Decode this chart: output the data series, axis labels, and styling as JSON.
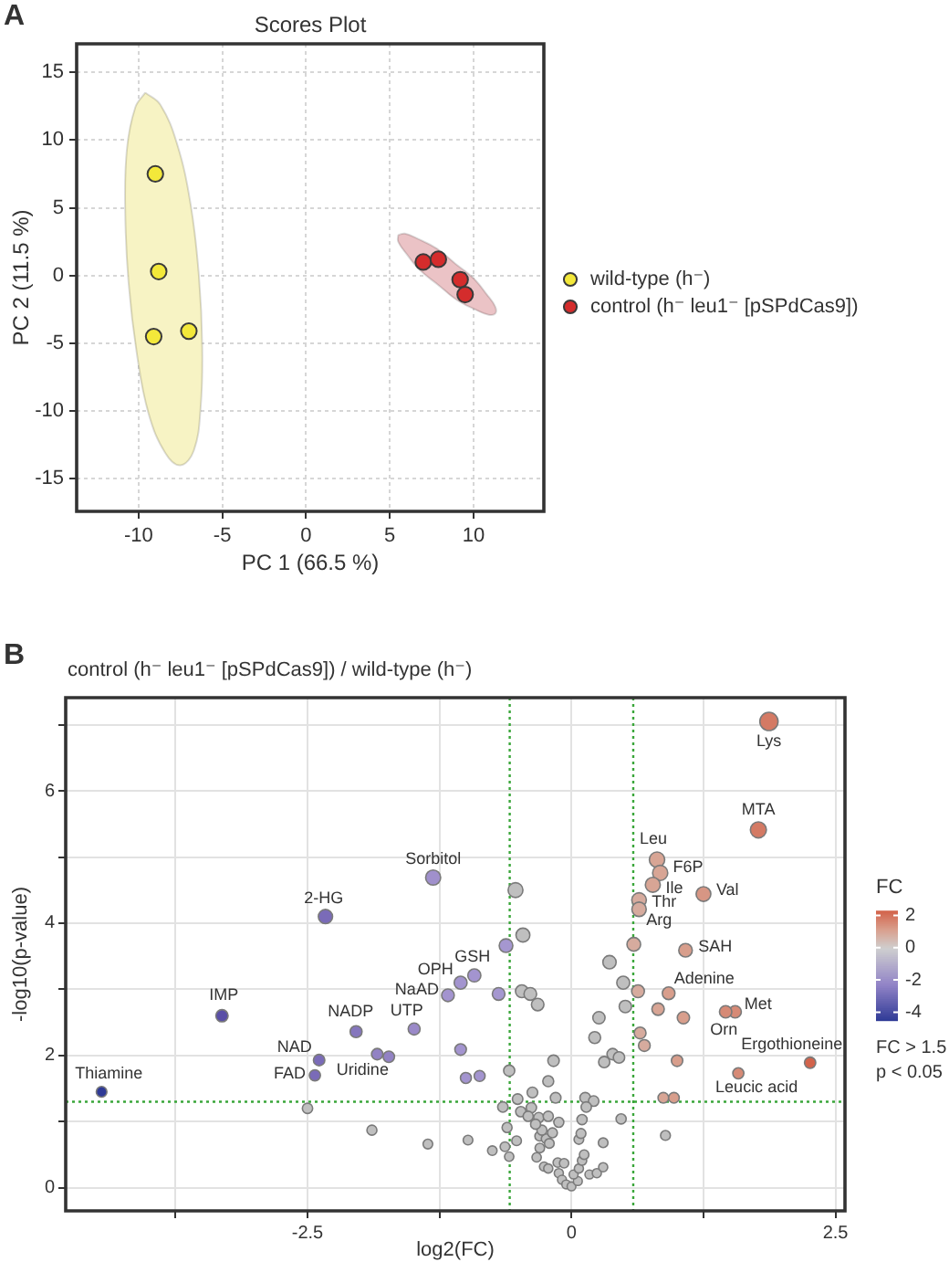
{
  "chart_data": [
    {
      "type": "scatter",
      "title": "Scores Plot",
      "xlabel": "PC 1 (66.5 %)",
      "ylabel": "PC 2 (11.5 %)",
      "annotations": [
        "A"
      ],
      "xlim": [
        -13.7,
        14.2
      ],
      "ylim": [
        -17.4,
        17.1
      ],
      "xticks": [
        -10,
        -5,
        0,
        5,
        10
      ],
      "yticks": [
        -15,
        -10,
        -5,
        0,
        5,
        10,
        15
      ],
      "grid": true,
      "legend": "right",
      "marker": "circle",
      "series": [
        {
          "type": "area",
          "marker": "none",
          "color": "#f7f3c4",
          "x": [
            -9.6,
            -8.7,
            -7.7,
            -6.9,
            -6.4,
            -6.2,
            -6.3,
            -6.7,
            -7.5,
            -8.4,
            -9.4,
            -10.1,
            -10.6,
            -10.8,
            -10.7,
            -10.2,
            -9.6
          ],
          "values": [
            13.5,
            12.6,
            9.7,
            5.3,
            0.0,
            -5.3,
            -9.8,
            -12.9,
            -14.0,
            -13.1,
            -10.2,
            -5.8,
            -0.5,
            4.8,
            9.3,
            12.4,
            13.5
          ]
        },
        {
          "type": "area",
          "marker": "none",
          "color": "#ebc3c6",
          "x": [
            5.5,
            5.9,
            6.7,
            7.8,
            8.9,
            10.0,
            10.8,
            11.3,
            11.3,
            10.9,
            10.1,
            9.0,
            7.9,
            6.8,
            6.0,
            5.5,
            5.5
          ],
          "values": [
            3.0,
            3.1,
            2.7,
            2.0,
            0.9,
            -0.2,
            -1.4,
            -2.3,
            -2.8,
            -2.9,
            -2.5,
            -1.8,
            -0.7,
            0.4,
            1.6,
            2.5,
            3.0
          ]
        },
        {
          "name": "wild-type (h⁻)",
          "color": "#f3e83a",
          "x": [
            -9.0,
            -8.8,
            -9.1,
            -7.0
          ],
          "values": [
            7.5,
            0.3,
            -4.5,
            -4.1
          ]
        },
        {
          "name": "control (h⁻ leu1⁻ [pSPdCas9])",
          "color": "#d42c2c",
          "x": [
            7.0,
            7.9,
            9.2,
            9.5
          ],
          "values": [
            1.0,
            1.2,
            -0.3,
            -1.4
          ]
        }
      ]
    },
    {
      "type": "bubble",
      "title": "control (h⁻ leu1⁻ [pSPdCas9]) / wild-type (h⁻)",
      "xlabel": "log2(FC)",
      "ylabel": "-log10(p-value)",
      "clabel": "FC",
      "clim": [
        -4.5,
        2.3
      ],
      "cticks": [
        2,
        0,
        -2,
        -4
      ],
      "xlim": [
        -4.79,
        2.59
      ],
      "ylim": [
        -0.35,
        7.41
      ],
      "xticks": [
        {
          "value": -3.75,
          "label": null
        },
        -2.5,
        {
          "value": -1.25,
          "label": null
        },
        0,
        {
          "value": 1.25,
          "label": null
        },
        2.5
      ],
      "yticks": [
        0,
        {
          "value": 1,
          "label": null
        },
        2,
        {
          "value": 3,
          "label": null
        },
        4,
        {
          "value": 5,
          "label": null
        },
        6,
        {
          "value": 7,
          "label": null
        }
      ],
      "grid": true,
      "marker": "circle",
      "ref_lines": [
        {
          "axis": "x",
          "value": -0.585,
          "color": "#3aa63a",
          "line_style": "dotted"
        },
        {
          "axis": "x",
          "value": 0.585,
          "color": "#3aa63a",
          "line_style": "dotted"
        },
        {
          "axis": "y",
          "value": 1.3,
          "color": "#3aa63a",
          "line_style": "dotted"
        }
      ],
      "series": [
        {
          "color": "#bfbfbf",
          "x": [
            -0.53,
            -0.46,
            -0.47,
            -0.39,
            -0.32,
            0.36,
            0.49,
            0.51,
            0.26,
            0.22,
            0.31,
            0.39,
            0.45,
            -0.59,
            -0.17,
            -0.22,
            -0.37,
            -0.51,
            -0.65,
            -0.15,
            0.13,
            0.21,
            0.14,
            -0.48,
            -0.38,
            -0.41,
            -0.31,
            -0.22,
            -0.12,
            0.1,
            0.47,
            -0.61,
            -1.89,
            -1.36,
            -0.98,
            -0.75,
            -0.63,
            -0.59,
            -0.52,
            -0.3,
            -0.24,
            -0.21,
            -0.3,
            -0.33,
            -0.26,
            -0.22,
            -0.13,
            -0.07,
            -0.12,
            -0.09,
            -0.05,
            0.0,
            0.06,
            0.02,
            0.07,
            0.1,
            0.07,
            0.09,
            0.12,
            0.17,
            0.24,
            0.3,
            0.3,
            0.89,
            -2.5,
            -0.28,
            -0.34,
            -0.18
          ],
          "values": [
            4.5,
            3.82,
            2.97,
            2.93,
            2.77,
            3.41,
            3.1,
            2.74,
            2.57,
            2.27,
            1.9,
            2.02,
            1.97,
            1.77,
            1.92,
            1.61,
            1.44,
            1.34,
            1.22,
            1.36,
            1.36,
            1.31,
            1.22,
            1.15,
            1.21,
            1.08,
            1.06,
            1.08,
            0.99,
            1.03,
            1.04,
            0.91,
            0.87,
            0.66,
            0.72,
            0.56,
            0.62,
            0.47,
            0.71,
            0.78,
            0.74,
            0.67,
            0.6,
            0.46,
            0.32,
            0.29,
            0.38,
            0.37,
            0.22,
            0.12,
            0.05,
            0.02,
            0.1,
            0.2,
            0.29,
            0.41,
            0.73,
            0.82,
            0.5,
            0.2,
            0.22,
            0.31,
            0.68,
            0.79,
            1.2,
            0.87,
            0.96,
            0.83
          ],
          "sizes": [
            0.66,
            0.58,
            0.49,
            0.48,
            0.47,
            0.53,
            0.5,
            0.46,
            0.45,
            0.42,
            0.38,
            0.39,
            0.39,
            0.37,
            0.39,
            0.36,
            0.34,
            0.33,
            0.32,
            0.34,
            0.34,
            0.33,
            0.32,
            0.32,
            0.32,
            0.31,
            0.31,
            0.31,
            0.3,
            0.31,
            0.31,
            0.3,
            0.3,
            0.28,
            0.28,
            0.27,
            0.28,
            0.26,
            0.28,
            0.29,
            0.28,
            0.28,
            0.27,
            0.26,
            0.25,
            0.25,
            0.26,
            0.26,
            0.25,
            0.24,
            0.23,
            0.23,
            0.24,
            0.24,
            0.25,
            0.26,
            0.28,
            0.29,
            0.27,
            0.24,
            0.25,
            0.25,
            0.28,
            0.29,
            0.32,
            0.3,
            0.3,
            0.29
          ]
        },
        {
          "x": [
            1.87,
            1.77,
            0.81,
            0.84,
            0.77,
            1.25,
            0.64,
            0.64,
            1.08,
            0.59,
            0.92,
            0.63,
            0.82,
            1.06,
            1.55,
            1.46,
            0.65,
            0.69,
            1.0,
            2.26,
            1.58,
            0.87,
            0.97,
            -4.45,
            -3.31,
            -2.33,
            -1.31,
            -2.04,
            -1.49,
            -2.39,
            -2.43,
            -1.84,
            -1.73,
            -1.05,
            -1.0,
            -0.87,
            -1.17,
            -1.05,
            -0.92,
            -0.69,
            -0.62
          ],
          "values": [
            7.05,
            5.41,
            4.96,
            4.76,
            4.58,
            4.44,
            4.35,
            4.21,
            3.59,
            3.68,
            2.94,
            2.97,
            2.7,
            2.57,
            2.66,
            2.66,
            2.34,
            2.15,
            1.92,
            1.89,
            1.73,
            1.36,
            1.36,
            1.45,
            2.6,
            4.1,
            4.69,
            2.36,
            2.4,
            1.93,
            1.7,
            2.02,
            1.98,
            2.09,
            1.66,
            1.69,
            2.91,
            3.1,
            3.21,
            2.93,
            3.66
          ],
          "sizes": [
            1.0,
            0.77,
            0.71,
            0.69,
            0.67,
            0.65,
            0.64,
            0.62,
            0.55,
            0.56,
            0.48,
            0.49,
            0.46,
            0.45,
            0.46,
            0.46,
            0.42,
            0.41,
            0.39,
            0.38,
            0.37,
            0.34,
            0.34,
            0.34,
            0.45,
            0.61,
            0.68,
            0.43,
            0.43,
            0.39,
            0.37,
            0.39,
            0.39,
            0.4,
            0.36,
            0.36,
            0.48,
            0.5,
            0.51,
            0.48,
            0.56
          ],
          "colors": [
            "#d47a64",
            "#d47a64",
            "#d8a595",
            "#d8a595",
            "#d8a595",
            "#d79684",
            "#d6ab9e",
            "#d6ab9e",
            "#d89e8c",
            "#d6ab9e",
            "#d89e8c",
            "#d6ab9e",
            "#d8a595",
            "#d89e8c",
            "#d68a76",
            "#d68a76",
            "#d6ab9e",
            "#d6ab9e",
            "#d89e8c",
            "#d2634b",
            "#d68a76",
            "#d8a595",
            "#d89e8c",
            "#2f3a96",
            "#5a4fa6",
            "#7a6bb8",
            "#a090cc",
            "#8576bd",
            "#9a89c8",
            "#7a6bb8",
            "#7a6bb8",
            "#9282c4",
            "#9282c4",
            "#a394cf",
            "#a394cf",
            "#a394cf",
            "#a394cf",
            "#a394cf",
            "#a394cf",
            "#a597d0",
            "#a597d0"
          ]
        }
      ],
      "annotations": [
        "B",
        {
          "text": "Lys",
          "x": 1.87,
          "y": 7.05
        },
        {
          "text": "MTA",
          "x": 1.77,
          "y": 5.41
        },
        {
          "text": "Leu",
          "x": 0.81,
          "y": 4.96
        },
        {
          "text": "F6P",
          "x": 0.84,
          "y": 4.76
        },
        {
          "text": "Ile",
          "x": 0.77,
          "y": 4.58
        },
        {
          "text": "Val",
          "x": 1.25,
          "y": 4.44
        },
        {
          "text": "Thr",
          "x": 0.64,
          "y": 4.35
        },
        {
          "text": "Arg",
          "x": 0.64,
          "y": 4.21
        },
        {
          "text": "SAH",
          "x": 1.08,
          "y": 3.59
        },
        {
          "text": "Adenine",
          "x": 0.92,
          "y": 2.94
        },
        {
          "text": "Met",
          "x": 1.55,
          "y": 2.66
        },
        {
          "text": "Orn",
          "x": 1.46,
          "y": 2.66
        },
        {
          "text": "Ergothioneine",
          "x": 2.26,
          "y": 1.89
        },
        {
          "text": "Leucic acid",
          "x": 1.58,
          "y": 1.73
        },
        {
          "text": "Sorbitol",
          "x": -1.31,
          "y": 4.69
        },
        {
          "text": "2-HG",
          "x": -2.33,
          "y": 4.1
        },
        {
          "text": "IMP",
          "x": -3.31,
          "y": 2.6
        },
        {
          "text": "Thiamine",
          "x": -4.45,
          "y": 1.45
        },
        {
          "text": "NADP",
          "x": -2.04,
          "y": 2.36
        },
        {
          "text": "UTP",
          "x": -1.49,
          "y": 2.4
        },
        {
          "text": "NAD",
          "x": -2.39,
          "y": 1.93
        },
        {
          "text": "FAD",
          "x": -2.43,
          "y": 1.7
        },
        {
          "text": "Uridine",
          "x": -1.84,
          "y": 2.02
        },
        {
          "text": "OPH",
          "x": -1.05,
          "y": 3.1
        },
        {
          "text": "NaAD",
          "x": -1.17,
          "y": 2.91
        },
        {
          "text": "GSH",
          "x": -0.92,
          "y": 3.21
        },
        "FC > 1.5",
        "p < 0.05"
      ]
    }
  ]
}
